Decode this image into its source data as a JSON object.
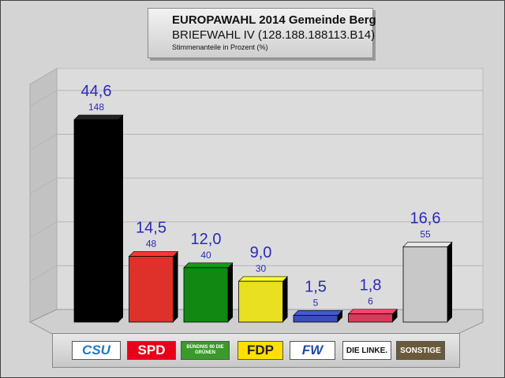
{
  "header": {
    "title_line1": "EUROPAWAHL 2014 Gemeinde Berg",
    "title_line2": "BRIEFWAHL IV (128.188.188113.B14)",
    "subtitle": "Stimmenanteile in Prozent (%)"
  },
  "chart_data": {
    "type": "bar",
    "categories": [
      "CSU",
      "SPD",
      "BÜNDNIS 90 DIE GRÜNEN",
      "FDP",
      "FW",
      "DIE LINKE.",
      "SONSTIGE"
    ],
    "values": [
      44.6,
      14.5,
      12.0,
      9.0,
      1.5,
      1.8,
      16.6
    ],
    "value_labels": [
      "44,6",
      "14,5",
      "12,0",
      "9,0",
      "1,5",
      "1,8",
      "16,6"
    ],
    "votes": [
      "148",
      "48",
      "40",
      "30",
      "5",
      "6",
      "55"
    ],
    "colors": [
      "#000000",
      "#e0302a",
      "#118811",
      "#e8e020",
      "#3a4db8",
      "#d83a5a",
      "#c8c8c8"
    ],
    "title": "EUROPAWAHL 2014 Gemeinde Berg",
    "ylim": [
      0,
      50
    ],
    "grid": true,
    "legend": "bottom"
  },
  "legend": {
    "items": [
      {
        "text": "CSU",
        "bg": "#ffffff",
        "fg": "#1f78c8"
      },
      {
        "text": "SPD",
        "bg": "#e8001a",
        "fg": "#ffffff"
      },
      {
        "text": "BÜNDNIS 90 DIE GRÜNEN",
        "bg": "#3a9a2a",
        "fg": "#ffffff"
      },
      {
        "text": "FDP",
        "bg": "#ffe000",
        "fg": "#222222"
      },
      {
        "text": "FW",
        "bg": "#ffffff",
        "fg": "#1f4aa8"
      },
      {
        "text": "DIE LINKE.",
        "bg": "#ffffff",
        "fg": "#111111"
      },
      {
        "text": "SONSTIGE",
        "bg": "#6a5a3a",
        "fg": "#ffffff"
      }
    ]
  }
}
